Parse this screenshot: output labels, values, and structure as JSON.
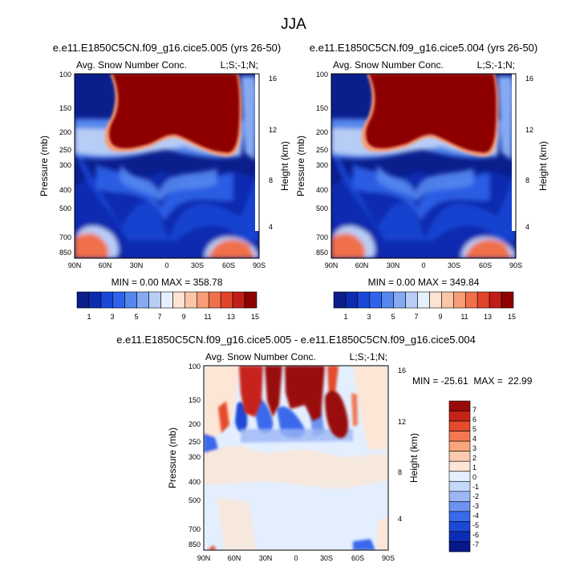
{
  "figure": {
    "title": "JJA"
  },
  "colors": {
    "abs_scale": [
      "#0a1e8c",
      "#0c2cb0",
      "#1a47d6",
      "#2f63ea",
      "#5587ee",
      "#86aaf2",
      "#b8cdf6",
      "#e6efff",
      "#fde3d2",
      "#fbc5a6",
      "#f79c77",
      "#f0704a",
      "#e2432b",
      "#c01f18",
      "#8e0000"
    ],
    "diff_scale": [
      "#08178a",
      "#0d2cb6",
      "#1c48d8",
      "#3a69ec",
      "#6d92f0",
      "#9cb6f5",
      "#c6d8f9",
      "#e3efff",
      "#fde6d6",
      "#fccaae",
      "#f9a67c",
      "#f27852",
      "#e54b2c",
      "#c8231a",
      "#9a0a0a"
    ]
  },
  "chart_data": [
    {
      "type": "heatmap",
      "case_title": "e.e11.E1850C5CN.f09_g16.cice5.005 (yrs 26-50)",
      "field": "Avg. Snow Number Conc.",
      "region": "L;S;-1;N;",
      "ylabel": "Pressure (mb)",
      "ylabel_right": "Height (km)",
      "x_ticks": [
        "90N",
        "60N",
        "30N",
        "0",
        "30S",
        "60S",
        "90S"
      ],
      "y_ticks": [
        "100",
        "150",
        "200",
        "250",
        "300",
        "400",
        "500",
        "700",
        "850"
      ],
      "y_ticks_right": [
        "16",
        "12",
        "8",
        "4"
      ],
      "stats": "MIN =  0.00  MAX = 358.78",
      "colorbar": [
        "1",
        "3",
        "5",
        "7",
        "9",
        "11",
        "13",
        "15"
      ],
      "levels": [
        1,
        2,
        3,
        4,
        5,
        6,
        7,
        8,
        9,
        10,
        11,
        12,
        13,
        14,
        15
      ],
      "ylim": [
        100,
        850
      ],
      "xlim": [
        90,
        -90
      ]
    },
    {
      "type": "heatmap",
      "case_title": "e.e11.E1850C5CN.f09_g16.cice5.004 (yrs 26-50)",
      "field": "Avg. Snow Number Conc.",
      "region": "L;S;-1;N;",
      "ylabel": "Pressure (mb)",
      "ylabel_right": "Height (km)",
      "x_ticks": [
        "90N",
        "60N",
        "30N",
        "0",
        "30S",
        "60S",
        "90S"
      ],
      "y_ticks": [
        "100",
        "150",
        "200",
        "250",
        "300",
        "400",
        "500",
        "700",
        "850"
      ],
      "y_ticks_right": [
        "16",
        "12",
        "8",
        "4"
      ],
      "stats": "MIN =  0.00  MAX = 349.84",
      "colorbar": [
        "1",
        "3",
        "5",
        "7",
        "9",
        "11",
        "13",
        "15"
      ],
      "levels": [
        1,
        2,
        3,
        4,
        5,
        6,
        7,
        8,
        9,
        10,
        11,
        12,
        13,
        14,
        15
      ],
      "ylim": [
        100,
        850
      ],
      "xlim": [
        90,
        -90
      ]
    },
    {
      "type": "heatmap",
      "case_title": "e.e11.E1850C5CN.f09_g16.cice5.005 - e.e11.E1850C5CN.f09_g16.cice5.004",
      "field": "Avg. Snow Number Conc.",
      "region": "L;S;-1;N;",
      "ylabel": "Pressure (mb)",
      "ylabel_right": "Height (km)",
      "x_ticks": [
        "90N",
        "60N",
        "30N",
        "0",
        "30S",
        "60S",
        "90S"
      ],
      "y_ticks": [
        "100",
        "150",
        "200",
        "250",
        "300",
        "400",
        "500",
        "700",
        "850"
      ],
      "y_ticks_right": [
        "16",
        "12",
        "8",
        "4"
      ],
      "stats": "MIN = -25.61  MAX =  22.99",
      "colorbar": [
        "7",
        "6",
        "5",
        "4",
        "3",
        "2",
        "1",
        "0",
        "-1",
        "-2",
        "-3",
        "-4",
        "-5",
        "-6",
        "-7"
      ],
      "levels": [
        -7,
        -6,
        -5,
        -4,
        -3,
        -2,
        -1,
        0,
        1,
        2,
        3,
        4,
        5,
        6,
        7
      ],
      "ylim": [
        100,
        850
      ],
      "xlim": [
        90,
        -90
      ]
    }
  ]
}
